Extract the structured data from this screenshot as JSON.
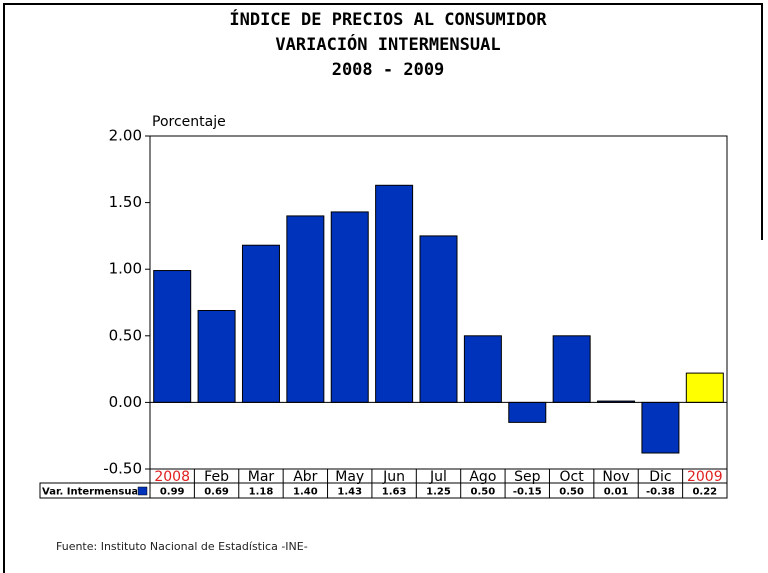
{
  "chart_data": {
    "type": "bar",
    "title": [
      "ÍNDICE DE PRECIOS AL CONSUMIDOR",
      "VARIACIÓN INTERMENSUAL",
      "2008 - 2009"
    ],
    "y_axis_label": "Porcentaje",
    "categories": [
      "2008",
      "Feb",
      "Mar",
      "Abr",
      "May",
      "Jun",
      "Jul",
      "Ago",
      "Sep",
      "Oct",
      "Nov",
      "Dic",
      "2009"
    ],
    "category_colors": [
      "#e02020",
      "#000000",
      "#000000",
      "#000000",
      "#000000",
      "#000000",
      "#000000",
      "#000000",
      "#000000",
      "#000000",
      "#000000",
      "#000000",
      "#e02020"
    ],
    "series": [
      {
        "name": "Var. Intermensual",
        "color": "#0033bb",
        "colors": [
          "#0033bb",
          "#0033bb",
          "#0033bb",
          "#0033bb",
          "#0033bb",
          "#0033bb",
          "#0033bb",
          "#0033bb",
          "#0033bb",
          "#0033bb",
          "#0033bb",
          "#0033bb",
          "#ffff00"
        ],
        "values": [
          0.99,
          0.69,
          1.18,
          1.4,
          1.43,
          1.63,
          1.25,
          0.5,
          -0.15,
          0.5,
          0.01,
          -0.38,
          0.22
        ],
        "value_labels": [
          "0.99",
          "0.69",
          "1.18",
          "1.40",
          "1.43",
          "1.63",
          "1.25",
          "0.50",
          "-0.15",
          "0.50",
          "0.01",
          "-0.38",
          "0.22"
        ]
      }
    ],
    "ylim": [
      -0.5,
      2
    ],
    "yticks": [
      {
        "value": -0.5,
        "label": "-0.50"
      },
      {
        "value": 0,
        "label": "0.00"
      },
      {
        "value": 0.5,
        "label": "0.50"
      },
      {
        "value": 1,
        "label": "1.00"
      },
      {
        "value": 1.5,
        "label": "1.50"
      },
      {
        "value": 2,
        "label": "2.00"
      }
    ],
    "source": "Fuente: Instituto Nacional de Estadística -INE-"
  }
}
